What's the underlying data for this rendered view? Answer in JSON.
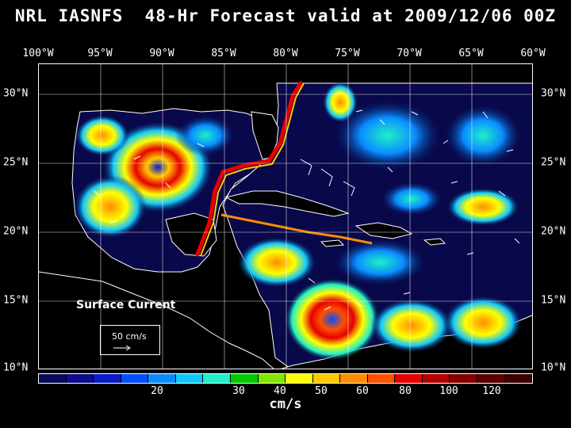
{
  "title": "NRL IASNFS  48-Hr Forecast valid at 2009/12/06 00Z",
  "longitude_labels": [
    "100°W",
    "95°W",
    "90°W",
    "85°W",
    "80°W",
    "75°W",
    "70°W",
    "65°W",
    "60°W"
  ],
  "latitude_labels": [
    "30°N",
    "25°N",
    "20°N",
    "15°N",
    "10°N"
  ],
  "map": {
    "field": "Surface Current",
    "scale_vector_label": "50 cm/s",
    "colors": {
      "ocean_background": "#08084a",
      "land": "#000000",
      "coastline": "#ffffff",
      "gridline": "#ffffff"
    }
  },
  "legend": {
    "unit": "cm/s",
    "tick_labels": [
      "20",
      "30",
      "40",
      "50",
      "60",
      "80",
      "100",
      "120"
    ],
    "colors": [
      "#0a0a5a",
      "#0c0c8c",
      "#0a1cc8",
      "#0050ff",
      "#0a8cff",
      "#10c8ff",
      "#1ef0c8",
      "#00c800",
      "#82e600",
      "#ffff00",
      "#ffc800",
      "#ff8c00",
      "#ff5000",
      "#e60000",
      "#b40000",
      "#820000",
      "#5a0000",
      "#3c0000"
    ]
  }
}
